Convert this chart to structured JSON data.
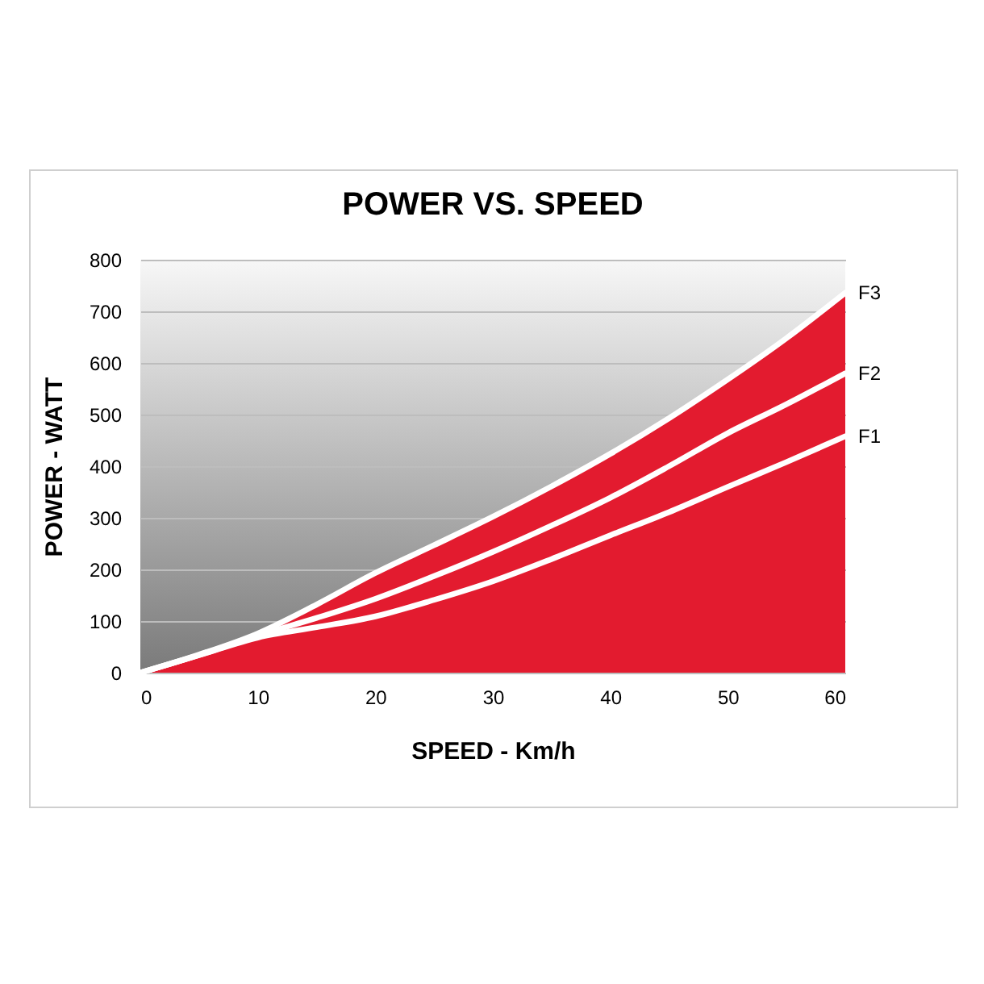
{
  "chart_data": {
    "type": "line",
    "title": "POWER VS. SPEED",
    "xlabel": "SPEED - Km/h",
    "ylabel": "POWER - WATT",
    "x": [
      0,
      5,
      10,
      15,
      20,
      25,
      30,
      35,
      40,
      45,
      50,
      55,
      60
    ],
    "series": [
      {
        "name": "F3",
        "type": "area",
        "color": "#e31b2f",
        "values": [
          0,
          35,
          76,
          132,
          193,
          247,
          302,
          361,
          424,
          493,
          568,
          648,
          736
        ]
      },
      {
        "name": "F2",
        "color": "#ffffff",
        "values": [
          0,
          34,
          72,
          106,
          143,
          187,
          234,
          285,
          339,
          400,
          464,
          520,
          580
        ]
      },
      {
        "name": "F1",
        "color": "#ffffff",
        "values": [
          0,
          34,
          68,
          88,
          109,
          141,
          177,
          220,
          266,
          311,
          360,
          408,
          458
        ]
      }
    ],
    "xlim": [
      0,
      60
    ],
    "xticks": [
      0,
      10,
      20,
      30,
      40,
      50,
      60
    ],
    "ylim": [
      0,
      800
    ],
    "yticks": [
      0,
      100,
      200,
      300,
      400,
      500,
      600,
      700,
      800
    ],
    "grid": "y",
    "legend": false,
    "line_style": "solid",
    "marker": "none"
  }
}
